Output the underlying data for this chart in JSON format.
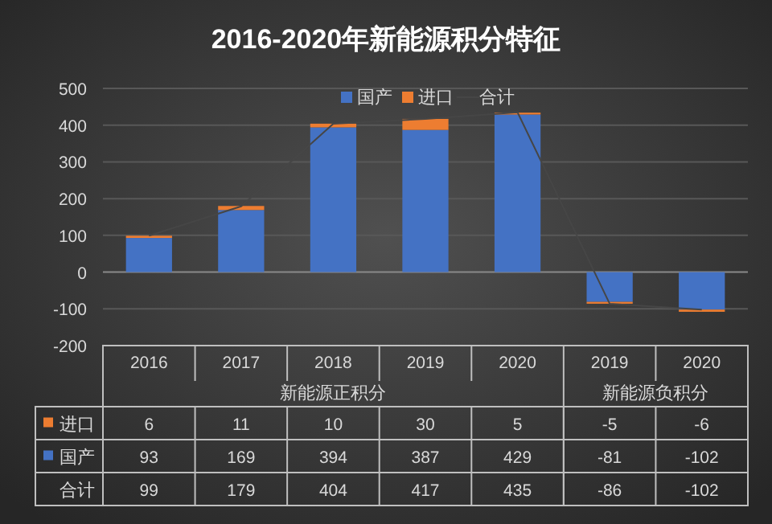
{
  "chart_data": {
    "type": "bar",
    "title": "2016-2020年新能源积分特征",
    "categories": [
      "2016",
      "2017",
      "2018",
      "2019",
      "2020",
      "2019",
      "2020"
    ],
    "annotations": [
      "新能源正积分",
      "新能源负积分"
    ],
    "series": [
      {
        "name": "国产",
        "color": "#4472c4",
        "values": [
          93,
          169,
          394,
          387,
          429,
          -81,
          -102
        ]
      },
      {
        "name": "进口",
        "color": "#ed7d31",
        "values": [
          6,
          11,
          10,
          30,
          5,
          -5,
          -6
        ]
      },
      {
        "name": "合计",
        "type": "line",
        "color": "#464646",
        "values": [
          99,
          179,
          404,
          417,
          435,
          -86,
          -102
        ]
      }
    ],
    "stacked": true,
    "ylim": [
      -200,
      500
    ],
    "yticks": [
      -200,
      -100,
      0,
      100,
      200,
      300,
      400,
      500
    ],
    "grid": "y",
    "legend": "top",
    "data_labels": true
  }
}
